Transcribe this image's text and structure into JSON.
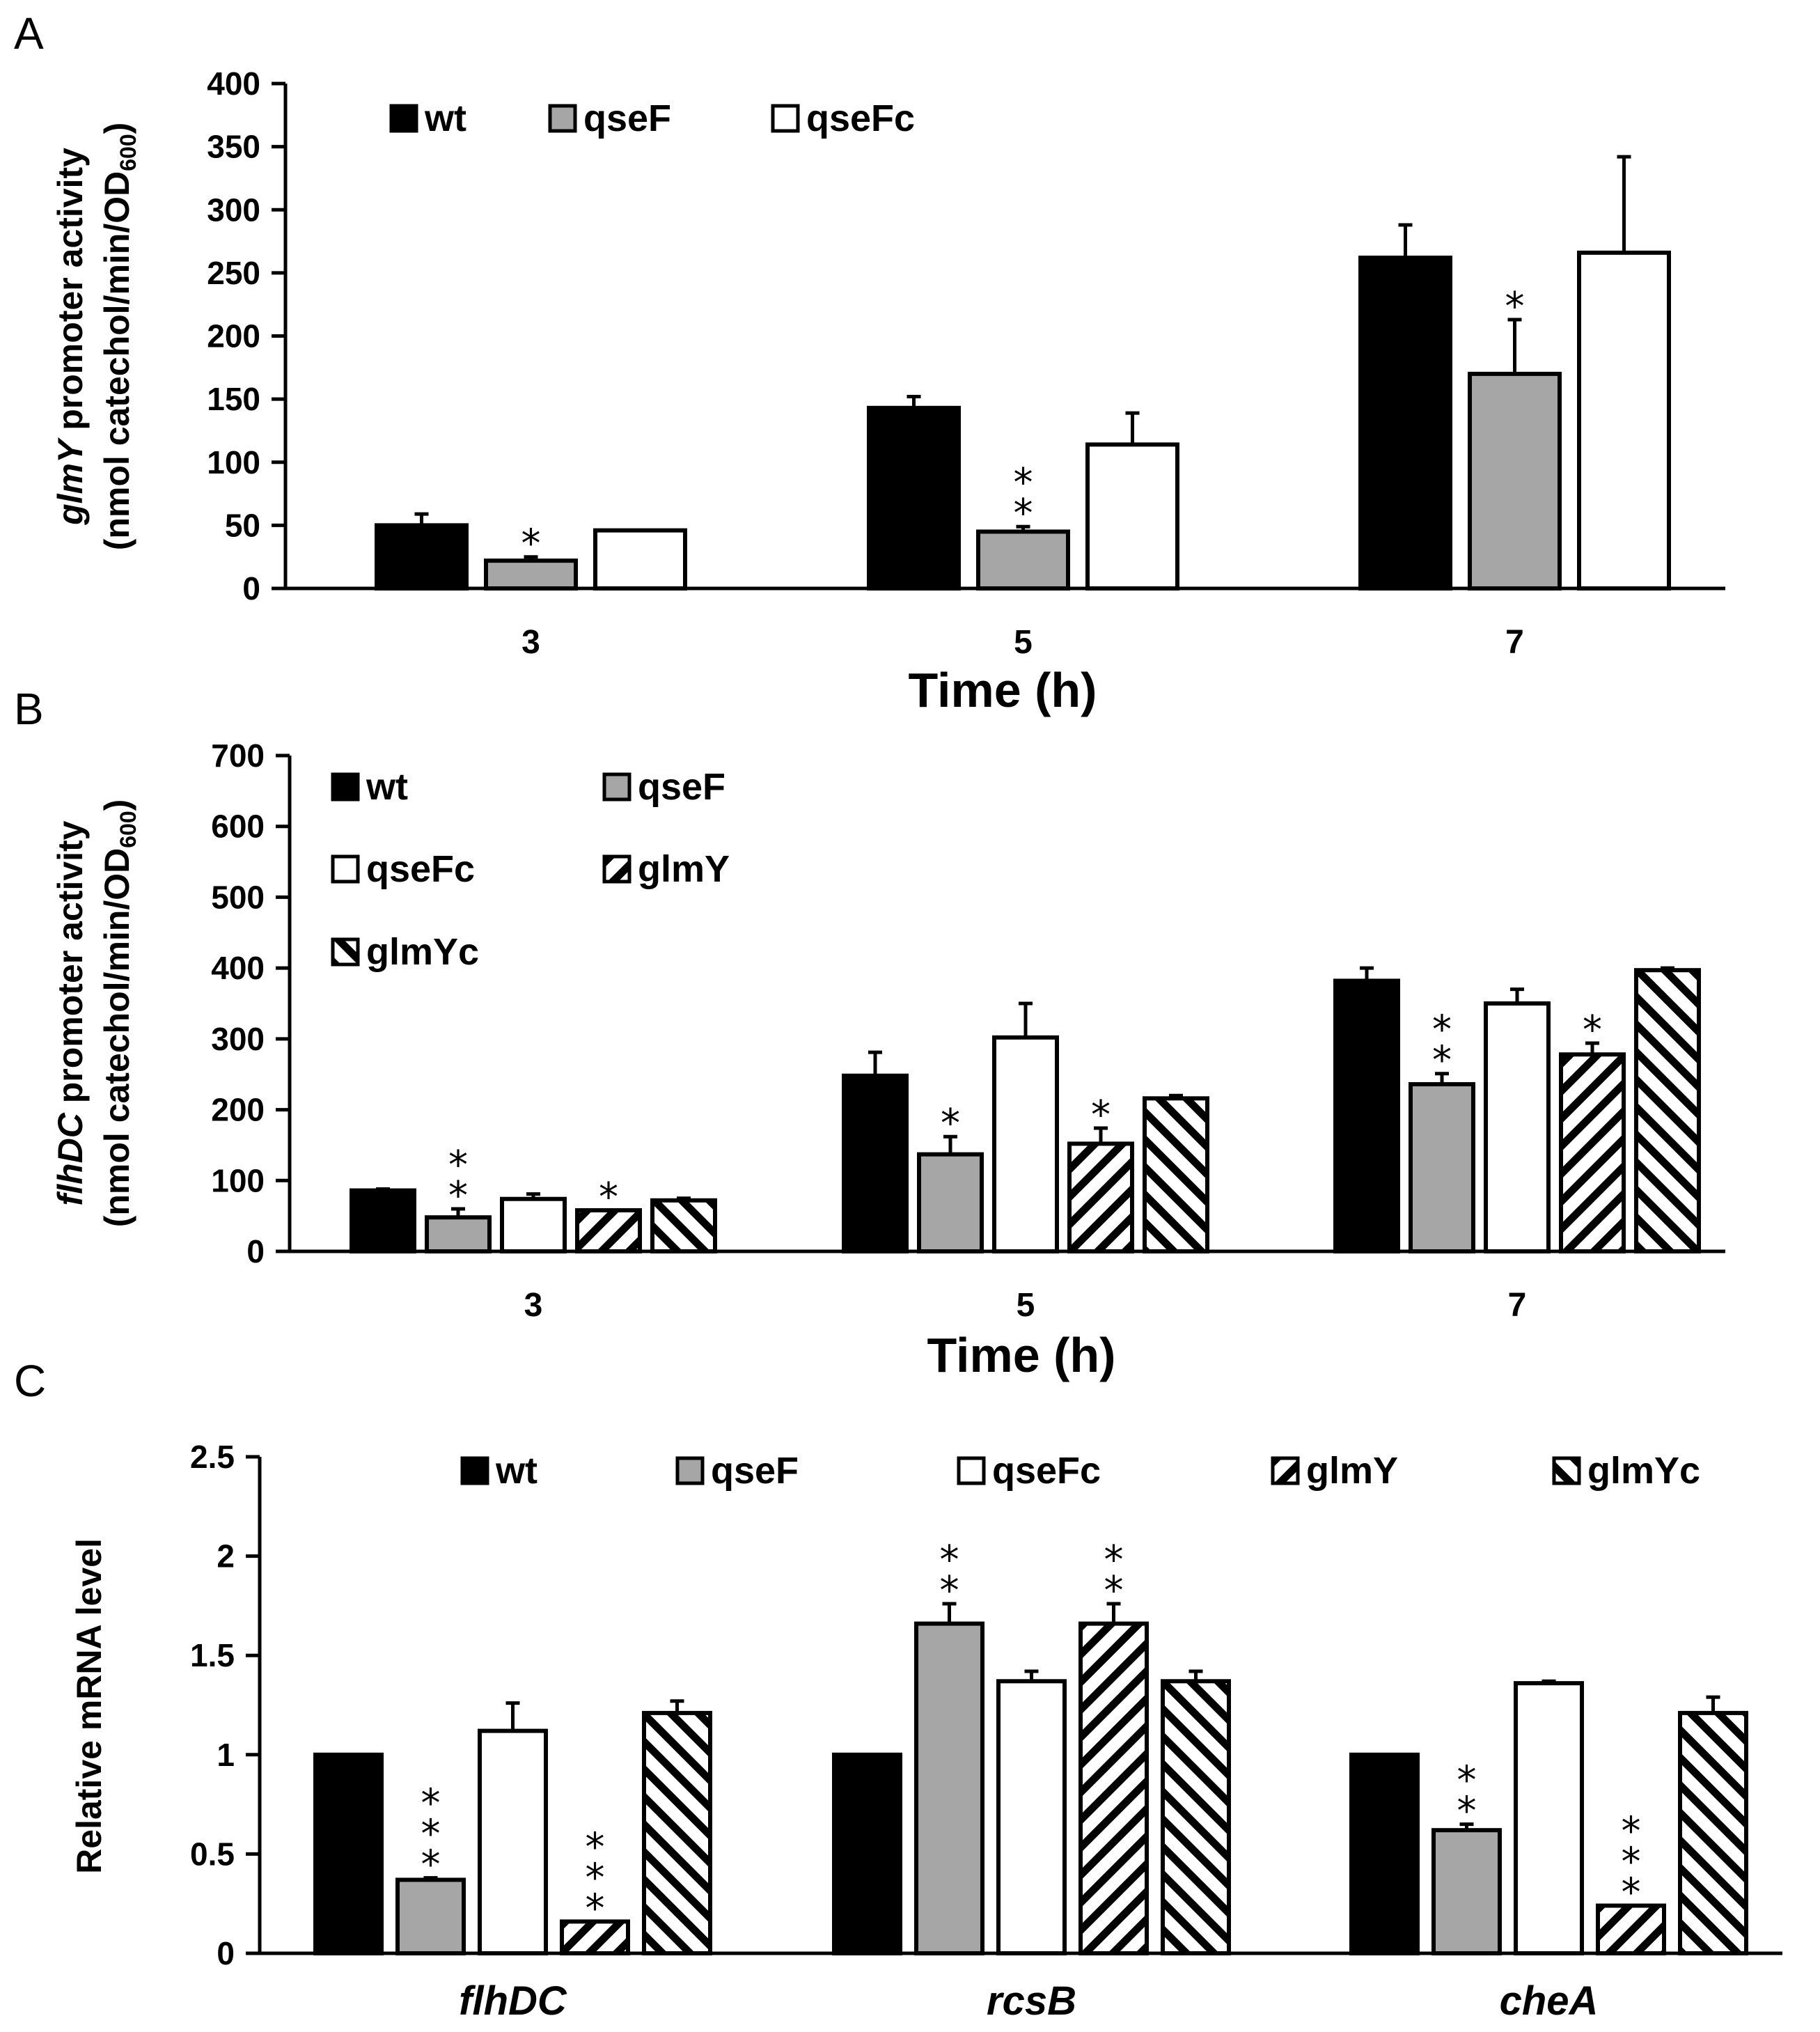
{
  "colors": {
    "wt": "#000000",
    "qseF": "#a6a6a6",
    "qseFc": "#ffffff",
    "stroke": "#000000"
  },
  "chart_data": [
    {
      "panel": "A",
      "type": "bar",
      "xlabel": "Time (h)",
      "ylabel_italic": "glmY",
      "ylabel_rest": " promoter activity",
      "ylabel_line2": "(nmol catechol/min/OD",
      "ylabel_sub": "600",
      "ylabel_close": ")",
      "ylim": [
        0,
        400
      ],
      "yticks": [
        "0",
        "50",
        "100",
        "150",
        "200",
        "250",
        "300",
        "350",
        "400"
      ],
      "categories": [
        "3",
        "5",
        "7"
      ],
      "legend": [
        "wt",
        "qseF",
        "qseFc"
      ],
      "series": [
        {
          "name": "wt",
          "style": "solid-black",
          "values": [
            50,
            143,
            262
          ],
          "errors": [
            9,
            9,
            26
          ]
        },
        {
          "name": "qseF",
          "style": "solid-gray",
          "values": [
            22,
            45,
            170
          ],
          "errors": [
            3,
            4,
            43
          ]
        },
        {
          "name": "qseFc",
          "style": "white",
          "values": [
            46,
            114,
            266
          ],
          "errors": [
            0,
            25,
            76
          ]
        }
      ],
      "significance": [
        {
          "category": 0,
          "series": 1,
          "marks": "*"
        },
        {
          "category": 1,
          "series": 1,
          "marks": "**"
        },
        {
          "category": 2,
          "series": 1,
          "marks": "*"
        }
      ]
    },
    {
      "panel": "B",
      "type": "bar",
      "xlabel": "Time (h)",
      "ylabel_italic": "flhDC",
      "ylabel_rest": " promoter activity",
      "ylabel_line2": "(nmol catechol/min/OD",
      "ylabel_sub": "600",
      "ylabel_close": ")",
      "ylim": [
        0,
        700
      ],
      "yticks": [
        "0",
        "100",
        "200",
        "300",
        "400",
        "500",
        "600",
        "700"
      ],
      "categories": [
        "3",
        "5",
        "7"
      ],
      "legend": [
        "wt",
        "qseF",
        "qseFc",
        "glmY",
        "glmYc"
      ],
      "series": [
        {
          "name": "wt",
          "style": "solid-black",
          "values": [
            86,
            248,
            382
          ],
          "errors": [
            2,
            33,
            18
          ]
        },
        {
          "name": "qseF",
          "style": "solid-gray",
          "values": [
            48,
            137,
            236
          ],
          "errors": [
            12,
            25,
            15
          ]
        },
        {
          "name": "qseFc",
          "style": "white",
          "values": [
            74,
            302,
            350
          ],
          "errors": [
            7,
            48,
            20
          ]
        },
        {
          "name": "glmY",
          "style": "hatch-fwd",
          "values": [
            58,
            152,
            278
          ],
          "errors": [
            0,
            22,
            16
          ]
        },
        {
          "name": "glmYc",
          "style": "hatch-back",
          "values": [
            72,
            216,
            397
          ],
          "errors": [
            3,
            4,
            3
          ]
        }
      ],
      "significance": [
        {
          "category": 0,
          "series": 1,
          "marks": "**"
        },
        {
          "category": 0,
          "series": 3,
          "marks": "*"
        },
        {
          "category": 1,
          "series": 1,
          "marks": "*"
        },
        {
          "category": 1,
          "series": 3,
          "marks": "*"
        },
        {
          "category": 2,
          "series": 1,
          "marks": "**"
        },
        {
          "category": 2,
          "series": 3,
          "marks": "*"
        }
      ]
    },
    {
      "panel": "C",
      "type": "bar",
      "xlabel": "",
      "ylabel_italic": "",
      "ylabel_rest": "Relative mRNA level",
      "ylabel_line2": "",
      "ylabel_sub": "",
      "ylabel_close": "",
      "ylim": [
        0,
        2.5
      ],
      "yticks": [
        "0",
        "0.5",
        "1",
        "1.5",
        "2",
        "2.5"
      ],
      "categories": [
        "flhDC",
        "rcsB",
        "cheA"
      ],
      "category_italic": true,
      "legend": [
        "wt",
        "qseF",
        "qseFc",
        "glmY",
        "glmYc"
      ],
      "series": [
        {
          "name": "wt",
          "style": "solid-black",
          "values": [
            1.0,
            1.0,
            1.0
          ],
          "errors": [
            0,
            0,
            0
          ]
        },
        {
          "name": "qseF",
          "style": "solid-gray",
          "values": [
            0.37,
            1.66,
            0.62
          ],
          "errors": [
            0.01,
            0.1,
            0.03
          ]
        },
        {
          "name": "qseFc",
          "style": "white",
          "values": [
            1.12,
            1.37,
            1.36
          ],
          "errors": [
            0.14,
            0.05,
            0.01
          ]
        },
        {
          "name": "glmY",
          "style": "hatch-fwd",
          "values": [
            0.16,
            1.66,
            0.24
          ],
          "errors": [
            0,
            0.1,
            0
          ]
        },
        {
          "name": "glmYc",
          "style": "hatch-back",
          "values": [
            1.21,
            1.37,
            1.21
          ],
          "errors": [
            0.06,
            0.05,
            0.08
          ]
        }
      ],
      "significance": [
        {
          "category": 0,
          "series": 1,
          "marks": "***"
        },
        {
          "category": 0,
          "series": 3,
          "marks": "***"
        },
        {
          "category": 1,
          "series": 1,
          "marks": "**"
        },
        {
          "category": 1,
          "series": 3,
          "marks": "**"
        },
        {
          "category": 2,
          "series": 1,
          "marks": "**"
        },
        {
          "category": 2,
          "series": 3,
          "marks": "***"
        }
      ]
    }
  ]
}
